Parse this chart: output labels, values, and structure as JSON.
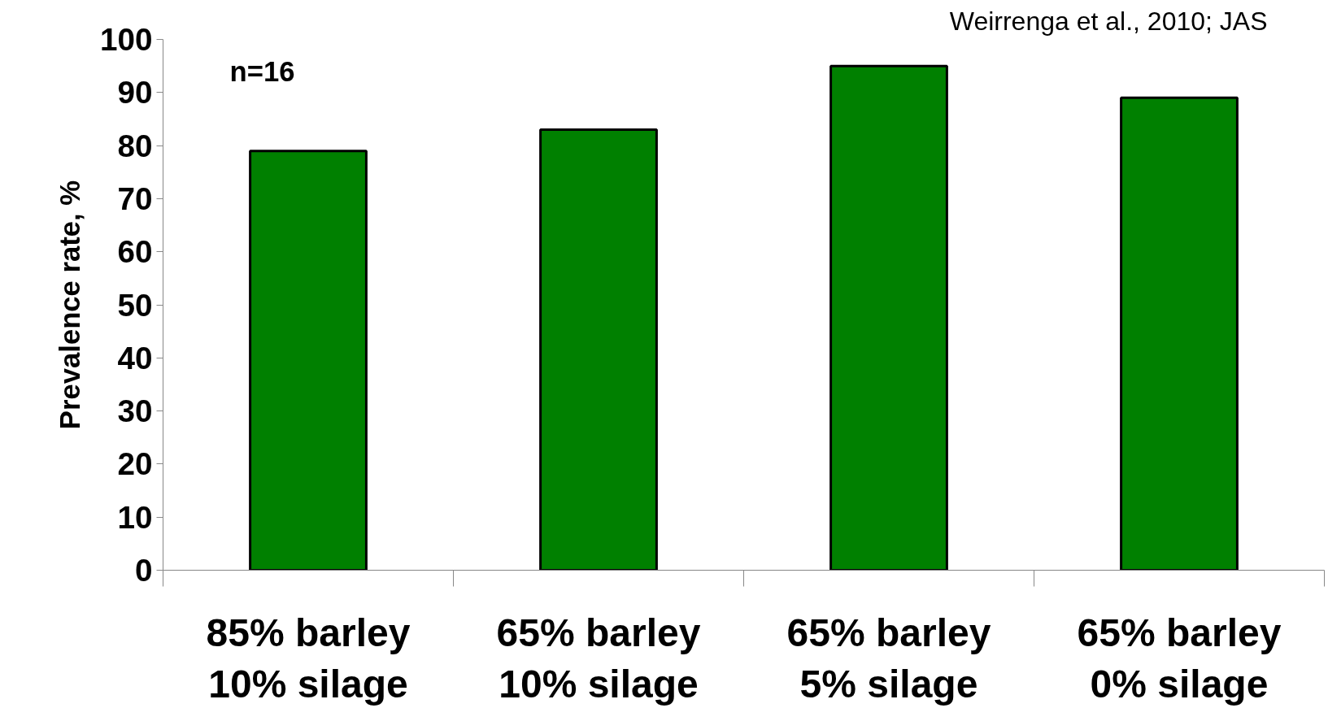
{
  "chart_data": {
    "type": "bar",
    "ylabel": "Prevalence rate, %",
    "categories": [
      "85% barley\n10% silage",
      "65% barley\n10% silage",
      "65% barley\n5% silage",
      "65% barley\n0% silage"
    ],
    "values": [
      79,
      83,
      95,
      89
    ],
    "color": "#008000",
    "ylim": [
      0,
      100
    ],
    "yticks": [
      0,
      10,
      20,
      30,
      40,
      50,
      60,
      70,
      80,
      90,
      100
    ],
    "grid": false,
    "annotations": [
      "n=16",
      "Weirrenga et al., 2010; JAS"
    ]
  }
}
